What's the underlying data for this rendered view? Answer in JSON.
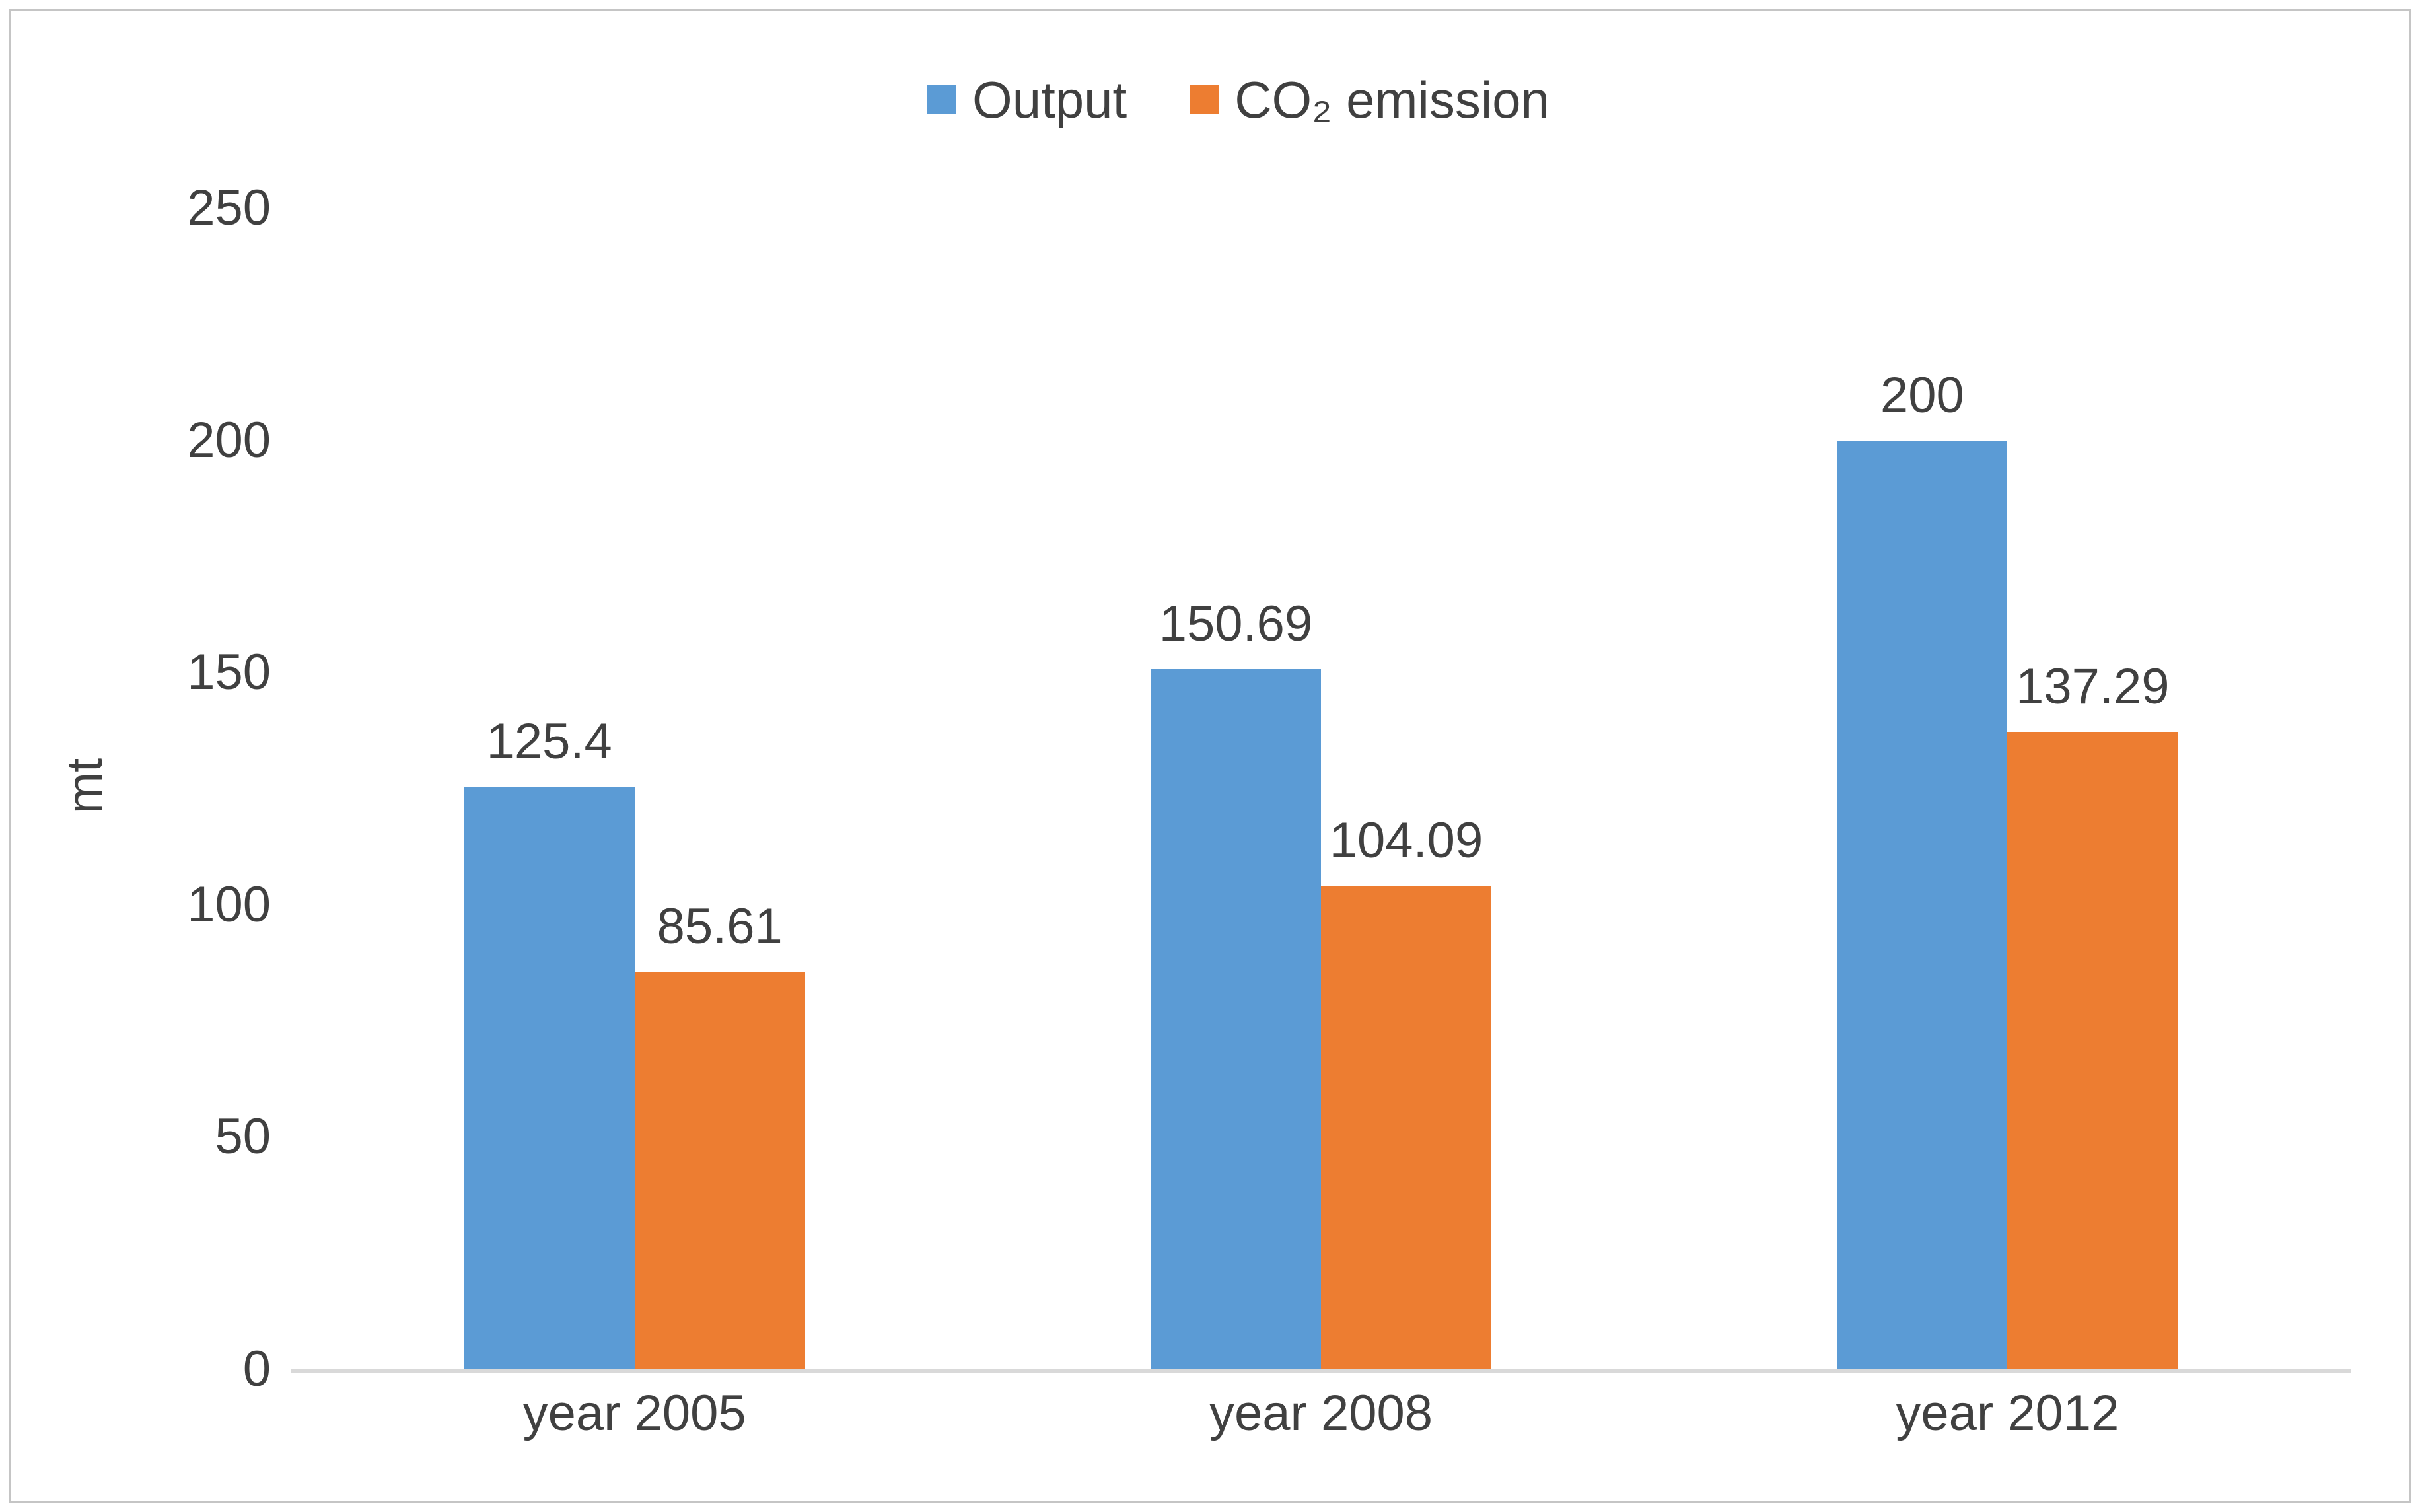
{
  "chart_data": {
    "type": "bar",
    "title": "",
    "categories": [
      "year 2005",
      "year 2008",
      "year 2012"
    ],
    "series": [
      {
        "name": "Output",
        "color": "#5B9BD5",
        "values": [
          125.4,
          150.69,
          200
        ],
        "value_labels": [
          "125.4",
          "150.69",
          "200"
        ]
      },
      {
        "name": "CO₂ emission",
        "color": "#ED7D31",
        "values": [
          85.61,
          104.09,
          137.29
        ],
        "value_labels": [
          "85.61",
          "104.09",
          "137.29"
        ]
      }
    ],
    "xlabel": "",
    "ylabel": "mt",
    "ylim": [
      0,
      250
    ],
    "yticks": [
      0,
      50,
      100,
      150,
      200,
      250
    ],
    "grid": false,
    "legend_position": "top",
    "data_labels": true
  },
  "colors": {
    "axis_line": "#D9D9D9",
    "text": "#404040",
    "frame_border": "#C5C5C5",
    "background": "#FFFFFF"
  }
}
